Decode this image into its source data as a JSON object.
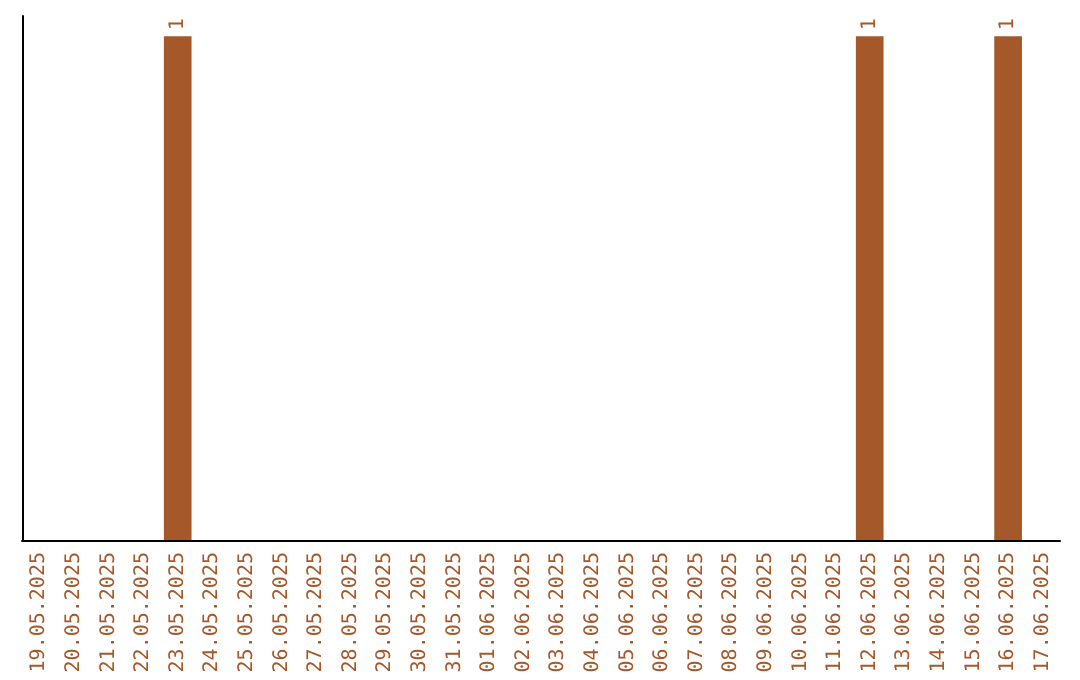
{
  "chart_data": {
    "type": "bar",
    "categories": [
      "19.05.2025",
      "20.05.2025",
      "21.05.2025",
      "22.05.2025",
      "23.05.2025",
      "24.05.2025",
      "25.05.2025",
      "26.05.2025",
      "27.05.2025",
      "28.05.2025",
      "29.05.2025",
      "30.05.2025",
      "31.05.2025",
      "01.06.2025",
      "02.06.2025",
      "03.06.2025",
      "04.06.2025",
      "05.06.2025",
      "06.06.2025",
      "07.06.2025",
      "08.06.2025",
      "09.06.2025",
      "10.06.2025",
      "11.06.2025",
      "12.06.2025",
      "13.06.2025",
      "14.06.2025",
      "15.06.2025",
      "16.06.2025",
      "17.06.2025"
    ],
    "values": [
      0,
      0,
      0,
      0,
      1,
      0,
      0,
      0,
      0,
      0,
      0,
      0,
      0,
      0,
      0,
      0,
      0,
      0,
      0,
      0,
      0,
      0,
      0,
      0,
      1,
      0,
      0,
      0,
      1,
      0
    ],
    "value_labels": [
      null,
      null,
      null,
      null,
      "1",
      null,
      null,
      null,
      null,
      null,
      null,
      null,
      null,
      null,
      null,
      null,
      null,
      null,
      null,
      null,
      null,
      null,
      null,
      null,
      "1",
      null,
      null,
      null,
      "1",
      null
    ],
    "color": "#a5592a",
    "tick_labels": "x"
  }
}
